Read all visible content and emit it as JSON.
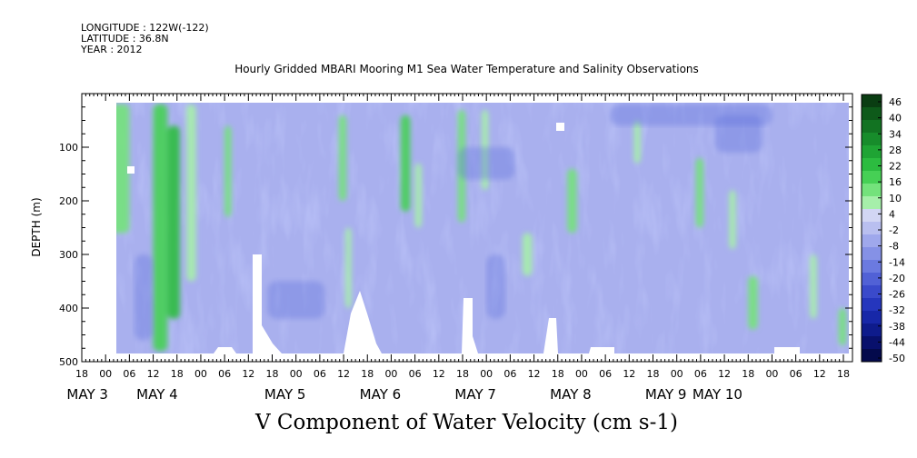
{
  "header": {
    "longitude": "LONGITUDE : 122W(-122)",
    "latitude": "LATITUDE : 36.8N",
    "year": "YEAR : 2012"
  },
  "chart_data": {
    "type": "heatmap",
    "title": "Hourly Gridded MBARI Mooring M1 Sea Water Temperature and Salinity Observations",
    "subtitle": "V Component of Water Velocity (cm s-1)",
    "ylabel": "DEPTH (m)",
    "ylim": [
      500,
      0
    ],
    "y_ticks": [
      100,
      200,
      300,
      400,
      500
    ],
    "hour_ticks": [
      "18",
      "00",
      "06",
      "12",
      "18",
      "00",
      "06",
      "12",
      "18",
      "00",
      "06",
      "12",
      "18",
      "00",
      "06",
      "12",
      "18",
      "00",
      "06",
      "12",
      "18",
      "00",
      "06",
      "12",
      "18",
      "00",
      "06",
      "12",
      "18",
      "00",
      "06",
      "12",
      "18"
    ],
    "day_labels": [
      "MAY  3",
      "MAY  4",
      "MAY  5",
      "MAY  6",
      "MAY  7",
      "MAY  8",
      "MAY  9",
      "MAY 10"
    ],
    "colorbar": {
      "labels": [
        "46",
        "40",
        "34",
        "28",
        "22",
        "16",
        "10",
        "4",
        "-2",
        "-8",
        "-14",
        "-20",
        "-26",
        "-32",
        "-38",
        "-44",
        "-50"
      ],
      "colors": [
        "#0a3d12",
        "#0e5a1a",
        "#127322",
        "#178c2b",
        "#1fa434",
        "#2cbc40",
        "#46d055",
        "#74e27c",
        "#a6efaa",
        "#d2d6f4",
        "#b9bff0",
        "#9fa8ec",
        "#8591e6",
        "#6b7ae0",
        "#5161d6",
        "#3a4acb",
        "#2536bd",
        "#1727a8",
        "#0e1b8c",
        "#08106c",
        "#040a4c"
      ]
    },
    "data_extent": {
      "day_start": 2.375,
      "day_end": 10.9,
      "depth_top": 20,
      "depth_bottom": 488
    }
  }
}
